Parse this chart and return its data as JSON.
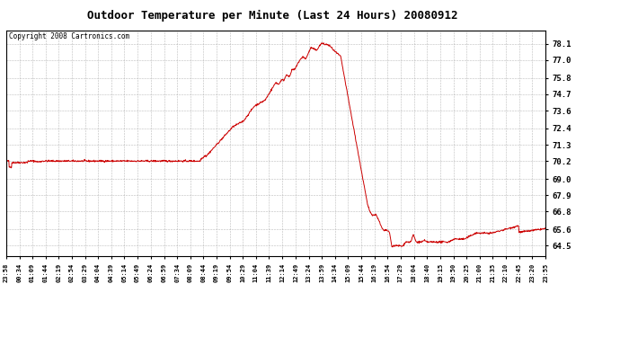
{
  "title": "Outdoor Temperature per Minute (Last 24 Hours) 20080912",
  "copyright": "Copyright 2008 Cartronics.com",
  "line_color": "#cc0000",
  "bg_color": "#ffffff",
  "plot_bg_color": "#ffffff",
  "grid_color": "#aaaaaa",
  "yticks": [
    64.5,
    65.6,
    66.8,
    67.9,
    69.0,
    70.2,
    71.3,
    72.4,
    73.6,
    74.7,
    75.8,
    77.0,
    78.1
  ],
  "ylim_min": 63.8,
  "ylim_max": 79.0,
  "xtick_labels": [
    "23:58",
    "00:34",
    "01:09",
    "01:44",
    "02:19",
    "02:54",
    "03:29",
    "04:04",
    "04:39",
    "05:14",
    "05:49",
    "06:24",
    "06:59",
    "07:34",
    "08:09",
    "08:44",
    "09:19",
    "09:54",
    "10:29",
    "11:04",
    "11:39",
    "12:14",
    "12:49",
    "13:24",
    "13:59",
    "14:34",
    "15:09",
    "15:44",
    "16:19",
    "16:54",
    "17:29",
    "18:04",
    "18:40",
    "19:15",
    "19:50",
    "20:25",
    "21:00",
    "21:35",
    "22:10",
    "22:45",
    "23:20",
    "23:55"
  ],
  "title_fontsize": 9,
  "copyright_fontsize": 5.5,
  "ytick_fontsize": 6.5,
  "xtick_fontsize": 5
}
